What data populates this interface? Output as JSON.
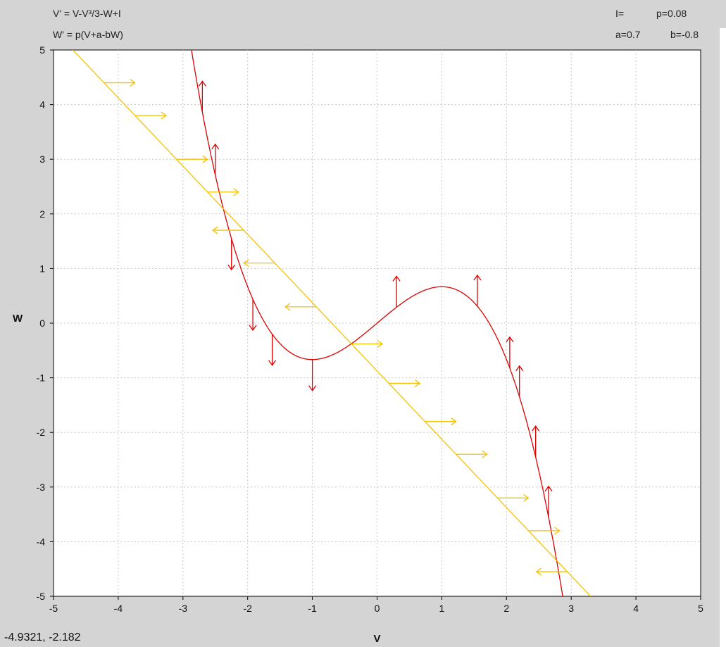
{
  "equations": {
    "v_dot": "V' = V-V³/3-W+I",
    "w_dot": "W' = p(V+a-bW)"
  },
  "parameters": {
    "I_label": "I=",
    "p_label": "p=0.08",
    "a_label": "a=0.7",
    "b_label": "b=-0.8"
  },
  "status": {
    "coordinate_readout": "-4.9321,  -2.182"
  },
  "colors": {
    "v_nullcline": "#e00000",
    "w_nullcline": "#f5c200",
    "grid": "#c8c8c8",
    "plot_bg": "#ffffff",
    "frame_bg": "#d4d4d4"
  },
  "chart_data": {
    "type": "line",
    "xlabel": "V",
    "ylabel": "W",
    "xlim": [
      -5,
      5
    ],
    "ylim": [
      -5,
      5
    ],
    "x_ticks": [
      "-5",
      "-4",
      "-3",
      "-2",
      "-1",
      "0",
      "1",
      "2",
      "3",
      "4",
      "5"
    ],
    "y_ticks": [
      "5",
      "4",
      "3",
      "2",
      "1",
      "0",
      "-1",
      "-2",
      "-3",
      "-4",
      "-5"
    ],
    "grid": true,
    "series": [
      {
        "key": "v_nullcline",
        "equation": "W = V - V^3/3",
        "x_range": [
          -2.9,
          2.9
        ],
        "arrows": [
          {
            "x": -2.7,
            "dir": "up"
          },
          {
            "x": -2.5,
            "dir": "up"
          },
          {
            "x": -2.25,
            "dir": "down"
          },
          {
            "x": -1.92,
            "dir": "down"
          },
          {
            "x": -1.62,
            "dir": "down"
          },
          {
            "x": -1.0,
            "dir": "down"
          },
          {
            "x": 0.3,
            "dir": "up"
          },
          {
            "x": 1.55,
            "dir": "up"
          },
          {
            "x": 2.05,
            "dir": "up"
          },
          {
            "x": 2.2,
            "dir": "up"
          },
          {
            "x": 2.45,
            "dir": "up"
          },
          {
            "x": 2.65,
            "dir": "up"
          }
        ]
      },
      {
        "key": "w_nullcline",
        "equation": "W = (V + 0.7) / -0.8",
        "x_range": [
          -4.7,
          3.3
        ],
        "arrows": [
          {
            "y": 4.4,
            "dir": "right"
          },
          {
            "y": 3.8,
            "dir": "right"
          },
          {
            "y": 3.0,
            "dir": "right"
          },
          {
            "y": 2.4,
            "dir": "right"
          },
          {
            "y": 1.7,
            "dir": "left"
          },
          {
            "y": 1.1,
            "dir": "left"
          },
          {
            "y": 0.3,
            "dir": "left"
          },
          {
            "y": -0.38,
            "dir": "right"
          },
          {
            "y": -1.1,
            "dir": "right"
          },
          {
            "y": -1.8,
            "dir": "right"
          },
          {
            "y": -2.4,
            "dir": "right"
          },
          {
            "y": -3.2,
            "dir": "right"
          },
          {
            "y": -3.8,
            "dir": "right"
          },
          {
            "y": -4.55,
            "dir": "left"
          }
        ]
      }
    ]
  }
}
